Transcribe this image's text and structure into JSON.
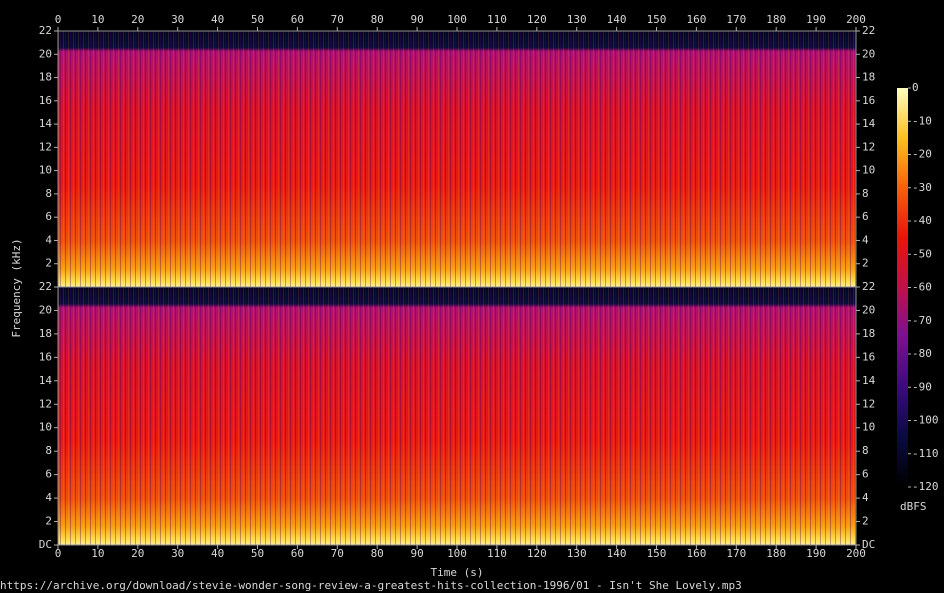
{
  "chart_data": {
    "type": "spectrogram",
    "xlabel": "Time (s)",
    "ylabel": "Frequency (kHz)",
    "xlim": [
      0,
      200
    ],
    "xticks": [
      0,
      10,
      20,
      30,
      40,
      50,
      60,
      70,
      80,
      90,
      100,
      110,
      120,
      130,
      140,
      150,
      160,
      170,
      180,
      190,
      200
    ],
    "panels": [
      {
        "ylim": [
          0,
          22
        ],
        "yticks": [
          2,
          4,
          6,
          8,
          10,
          12,
          14,
          16,
          18,
          20,
          22
        ]
      },
      {
        "ylim": [
          0,
          22
        ],
        "yticks": [
          {
            "value": 0,
            "label": "DC"
          },
          2,
          4,
          6,
          8,
          10,
          12,
          14,
          16,
          18,
          20,
          22
        ]
      }
    ],
    "colorbar": {
      "label": "dBFS",
      "lim": [
        -120,
        0
      ],
      "ticks": [
        0,
        -10,
        -20,
        -30,
        -40,
        -50,
        -60,
        -70,
        -80,
        -90,
        -100,
        -110,
        -120
      ],
      "colormap": [
        "#000000",
        "#0a0a40",
        "#3a0a80",
        "#7a1090",
        "#c0104a",
        "#e8140a",
        "#f8600a",
        "#fcc020",
        "#ffffc0"
      ]
    },
    "footer": "https://archive.org/download/stevie-wonder-song-review-a-greatest-hits-collection-1996/01 - Isn't She Lovely.mp3"
  }
}
